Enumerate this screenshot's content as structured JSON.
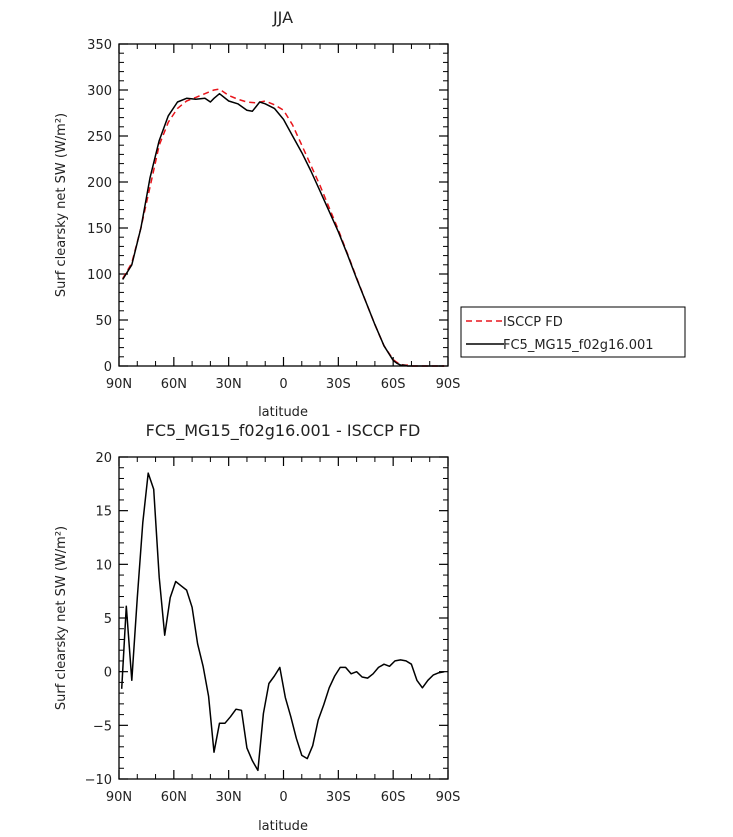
{
  "chart_data": [
    {
      "type": "line",
      "title": "JJA",
      "xlabel": "latitude",
      "ylabel": "Surf clearsky net SW (W/m²)",
      "xlim": [
        90,
        -90
      ],
      "ylim": [
        0,
        350
      ],
      "x_ticks": [
        90,
        60,
        30,
        0,
        -30,
        -60,
        -90
      ],
      "x_tick_labels": [
        "90N",
        "60N",
        "30N",
        "0",
        "30S",
        "60S",
        "90S"
      ],
      "y_ticks": [
        0,
        50,
        100,
        150,
        200,
        250,
        300,
        350
      ],
      "y_tick_labels": [
        "0",
        "50",
        "100",
        "150",
        "200",
        "250",
        "300",
        "350"
      ],
      "legend_position": "right, outside plot",
      "series": [
        {
          "name": "ISCCP FD",
          "color": "#e8151b",
          "style": "dashed",
          "x": [
            88,
            83,
            78,
            73,
            68,
            63,
            58,
            53,
            48,
            43,
            38,
            35,
            30,
            25,
            20,
            15,
            10,
            5,
            0,
            -5,
            -10,
            -15,
            -20,
            -25,
            -30,
            -35,
            -40,
            -45,
            -50,
            -55,
            -60,
            -62,
            -64,
            -66,
            -68,
            -70,
            -75,
            -80,
            -85,
            -88
          ],
          "y": [
            95,
            112,
            150,
            195,
            240,
            265,
            280,
            288,
            292,
            296,
            300,
            301,
            294,
            290,
            287,
            286,
            288,
            284,
            278,
            262,
            240,
            218,
            196,
            172,
            148,
            122,
            96,
            70,
            45,
            22,
            7,
            4,
            2,
            1,
            1,
            0,
            0,
            0,
            0,
            0
          ]
        },
        {
          "name": "FC5_MG15_f02g16.001",
          "color": "#000000",
          "style": "solid",
          "x": [
            88,
            83,
            78,
            73,
            68,
            63,
            58,
            53,
            48,
            43,
            40,
            38,
            35,
            30,
            25,
            20,
            17,
            15,
            13,
            10,
            5,
            0,
            -5,
            -10,
            -15,
            -20,
            -25,
            -30,
            -35,
            -40,
            -45,
            -50,
            -55,
            -60,
            -62,
            -64,
            -66,
            -68,
            -70,
            -75,
            -80,
            -85,
            -88
          ],
          "y": [
            94,
            110,
            150,
            205,
            245,
            272,
            287,
            291,
            290,
            291,
            287,
            291,
            296,
            288,
            285,
            278,
            277,
            282,
            287,
            285,
            280,
            268,
            250,
            232,
            212,
            190,
            168,
            146,
            121,
            95,
            70,
            45,
            22,
            6,
            3,
            1,
            1,
            0,
            0,
            0,
            0,
            0,
            0
          ]
        }
      ]
    },
    {
      "type": "line",
      "title": "FC5_MG15_f02g16.001 - ISCCP FD",
      "xlabel": "latitude",
      "ylabel": "Surf clearsky net SW (W/m²)",
      "xlim": [
        90,
        -90
      ],
      "ylim": [
        -10,
        20
      ],
      "x_ticks": [
        90,
        60,
        30,
        0,
        -30,
        -60,
        -90
      ],
      "x_tick_labels": [
        "90N",
        "60N",
        "30N",
        "0",
        "30S",
        "60S",
        "90S"
      ],
      "y_ticks": [
        -10,
        -5,
        0,
        5,
        10,
        15,
        20
      ],
      "y_tick_labels": [
        "−10",
        "−5",
        "0",
        "5",
        "10",
        "15",
        "20"
      ],
      "series": [
        {
          "color": "#000000",
          "style": "solid",
          "x": [
            88.5,
            86,
            83,
            80,
            77,
            74,
            71,
            68,
            65,
            62,
            59,
            56,
            53,
            50,
            47,
            44,
            41,
            38,
            35,
            32,
            29,
            26,
            23,
            20,
            17,
            14,
            11,
            8,
            5,
            2,
            -1,
            -4,
            -7,
            -10,
            -13,
            -16,
            -19,
            -22,
            -25,
            -28,
            -31,
            -34,
            -37,
            -40,
            -43,
            -46,
            -49,
            -52,
            -55,
            -58,
            -61,
            -64,
            -67,
            -70,
            -73,
            -76,
            -79,
            -82,
            -85,
            -88
          ],
          "y": [
            -1.6,
            6.1,
            -0.8,
            6.9,
            13.9,
            18.5,
            17,
            8.8,
            3.4,
            6.9,
            8.4,
            8,
            7.6,
            6,
            2.6,
            0.5,
            -2.3,
            -7.5,
            -4.8,
            -4.8,
            -4.2,
            -3.5,
            -3.6,
            -7.1,
            -8.3,
            -9.2,
            -3.9,
            -1.1,
            -0.4,
            0.4,
            -2.4,
            -4.2,
            -6.2,
            -7.8,
            -8.1,
            -6.9,
            -4.5,
            -3.1,
            -1.5,
            -0.4,
            0.4,
            0.4,
            -0.2,
            0,
            -0.5,
            -0.6,
            -0.2,
            0.4,
            0.7,
            0.5,
            1,
            1.1,
            1,
            0.7,
            -0.8,
            -1.5,
            -0.8,
            -0.3,
            -0.1,
            0
          ]
        }
      ]
    }
  ]
}
